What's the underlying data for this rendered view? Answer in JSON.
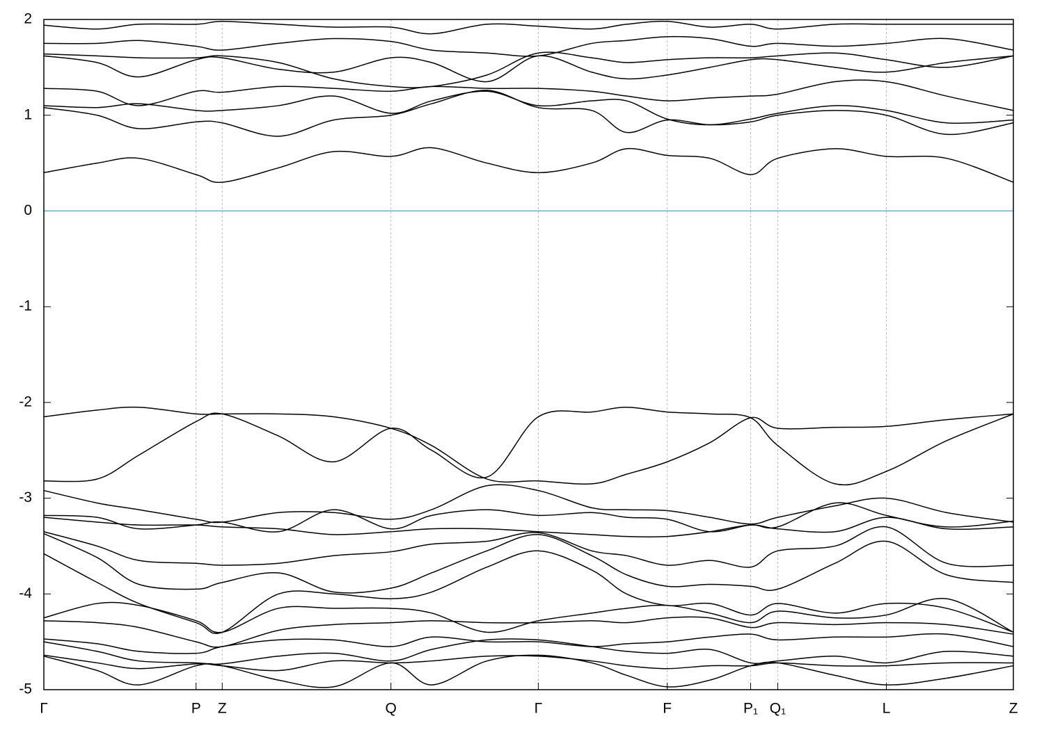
{
  "chart_data": {
    "type": "line",
    "color": "#000000",
    "reference_line": {
      "value": 0,
      "color": "#5fb0c8"
    },
    "grid_x": true,
    "grid_y": false,
    "xlim": [
      0,
      1
    ],
    "ylim": [
      -5,
      2
    ],
    "yticks": [
      -5,
      -4,
      -3,
      -2,
      -1,
      0,
      1,
      2
    ],
    "xticks": [
      {
        "value": 0,
        "label": "Γ"
      },
      {
        "value": 0.157,
        "label": "P"
      },
      {
        "value": 0.184,
        "label": "Z"
      },
      {
        "value": 0.358,
        "label": "Q"
      },
      {
        "value": 0.51,
        "label": "Γ"
      },
      {
        "value": 0.643,
        "label": "F"
      },
      {
        "value": 0.729,
        "label": "P₁"
      },
      {
        "value": 0.757,
        "label": "Q₁"
      },
      {
        "value": 0.869,
        "label": "L"
      },
      {
        "value": 1,
        "label": "Z"
      }
    ],
    "x": [
      0,
      0.055,
      0.098,
      0.157,
      0.184,
      0.242,
      0.299,
      0.358,
      0.4,
      0.457,
      0.51,
      0.565,
      0.601,
      0.643,
      0.687,
      0.729,
      0.757,
      0.816,
      0.869,
      0.931,
      1
    ],
    "series": [
      {
        "values": [
          0.4,
          0.5,
          0.55,
          0.38,
          0.3,
          0.45,
          0.62,
          0.57,
          0.66,
          0.5,
          0.4,
          0.5,
          0.65,
          0.58,
          0.55,
          0.38,
          0.55,
          0.65,
          0.57,
          0.55,
          0.3
        ]
      },
      {
        "values": [
          1.08,
          1.0,
          0.86,
          0.93,
          0.92,
          0.78,
          0.95,
          1.0,
          1.12,
          1.26,
          1.08,
          1.05,
          0.82,
          0.95,
          0.9,
          0.93,
          1.0,
          1.05,
          1.0,
          0.8,
          0.92
        ]
      },
      {
        "values": [
          1.1,
          1.08,
          1.12,
          1.05,
          1.05,
          1.1,
          1.2,
          1.02,
          1.15,
          1.25,
          1.1,
          1.15,
          1.15,
          0.96,
          0.9,
          0.96,
          1.02,
          1.1,
          1.05,
          0.92,
          0.95
        ]
      },
      {
        "values": [
          1.28,
          1.25,
          1.1,
          1.25,
          1.24,
          1.3,
          1.28,
          1.25,
          1.3,
          1.28,
          1.28,
          1.25,
          1.2,
          1.15,
          1.18,
          1.2,
          1.22,
          1.35,
          1.35,
          1.2,
          1.05
        ]
      },
      {
        "values": [
          1.62,
          1.55,
          1.4,
          1.58,
          1.6,
          1.48,
          1.45,
          1.6,
          1.55,
          1.35,
          1.62,
          1.45,
          1.38,
          1.42,
          1.5,
          1.58,
          1.58,
          1.5,
          1.45,
          1.55,
          1.62
        ]
      },
      {
        "values": [
          1.64,
          1.62,
          1.6,
          1.6,
          1.62,
          1.55,
          1.38,
          1.3,
          1.3,
          1.42,
          1.65,
          1.6,
          1.55,
          1.58,
          1.6,
          1.6,
          1.62,
          1.65,
          1.58,
          1.5,
          1.62
        ]
      },
      {
        "values": [
          1.75,
          1.75,
          1.78,
          1.72,
          1.68,
          1.75,
          1.8,
          1.77,
          1.68,
          1.65,
          1.62,
          1.75,
          1.78,
          1.82,
          1.8,
          1.72,
          1.75,
          1.72,
          1.75,
          1.8,
          1.68
        ]
      },
      {
        "values": [
          1.94,
          1.9,
          1.95,
          1.95,
          1.98,
          1.95,
          1.92,
          1.92,
          1.85,
          1.95,
          1.93,
          1.9,
          1.95,
          1.98,
          1.92,
          1.95,
          1.9,
          1.95,
          1.95,
          1.95,
          1.95
        ]
      },
      {
        "values": [
          -2.15,
          -2.08,
          -2.05,
          -2.12,
          -2.12,
          -2.12,
          -2.15,
          -2.27,
          -2.45,
          -2.8,
          -2.82,
          -2.85,
          -2.75,
          -2.62,
          -2.42,
          -2.16,
          -2.27,
          -2.26,
          -2.25,
          -2.18,
          -2.12
        ]
      },
      {
        "values": [
          -2.82,
          -2.8,
          -2.55,
          -2.2,
          -2.12,
          -2.35,
          -2.62,
          -2.27,
          -2.5,
          -2.78,
          -2.15,
          -2.1,
          -2.05,
          -2.1,
          -2.12,
          -2.16,
          -2.45,
          -2.85,
          -2.72,
          -2.4,
          -2.12
        ]
      },
      {
        "values": [
          -2.92,
          -3.05,
          -3.12,
          -3.22,
          -3.25,
          -3.15,
          -3.15,
          -3.22,
          -3.12,
          -2.87,
          -2.92,
          -3.1,
          -3.12,
          -3.13,
          -3.2,
          -3.27,
          -3.2,
          -3.08,
          -3.0,
          -3.15,
          -3.25
        ]
      },
      {
        "values": [
          -3.18,
          -3.2,
          -3.32,
          -3.28,
          -3.25,
          -3.35,
          -3.12,
          -3.32,
          -3.18,
          -3.12,
          -3.18,
          -3.15,
          -3.2,
          -3.22,
          -3.35,
          -3.28,
          -3.3,
          -3.05,
          -3.18,
          -3.3,
          -3.24
        ]
      },
      {
        "values": [
          -3.2,
          -3.25,
          -3.28,
          -3.28,
          -3.3,
          -3.32,
          -3.38,
          -3.35,
          -3.32,
          -3.32,
          -3.35,
          -3.38,
          -3.4,
          -3.4,
          -3.35,
          -3.28,
          -3.32,
          -3.35,
          -3.2,
          -3.32,
          -3.3
        ]
      },
      {
        "values": [
          -3.35,
          -3.5,
          -3.65,
          -3.68,
          -3.7,
          -3.68,
          -3.6,
          -3.56,
          -3.48,
          -3.45,
          -3.36,
          -3.55,
          -3.6,
          -3.7,
          -3.65,
          -3.72,
          -3.55,
          -3.5,
          -3.3,
          -3.68,
          -3.7
        ]
      },
      {
        "values": [
          -3.37,
          -3.62,
          -3.9,
          -3.95,
          -3.88,
          -3.78,
          -3.98,
          -3.94,
          -3.78,
          -3.55,
          -3.38,
          -3.6,
          -3.8,
          -3.92,
          -3.9,
          -3.92,
          -3.95,
          -3.68,
          -3.45,
          -3.8,
          -3.88
        ]
      },
      {
        "values": [
          -3.58,
          -3.88,
          -4.1,
          -4.3,
          -4.4,
          -4.0,
          -4.0,
          -4.05,
          -3.98,
          -3.72,
          -3.55,
          -3.75,
          -4.0,
          -4.12,
          -4.1,
          -4.22,
          -4.1,
          -4.2,
          -4.1,
          -4.15,
          -4.4
        ]
      },
      {
        "values": [
          -4.25,
          -4.1,
          -4.12,
          -4.28,
          -4.4,
          -4.15,
          -4.15,
          -4.15,
          -4.2,
          -4.4,
          -4.28,
          -4.2,
          -4.15,
          -4.12,
          -4.2,
          -4.3,
          -4.18,
          -4.25,
          -4.22,
          -4.05,
          -4.4
        ]
      },
      {
        "values": [
          -4.28,
          -4.3,
          -4.35,
          -4.5,
          -4.55,
          -4.38,
          -4.32,
          -4.3,
          -4.28,
          -4.3,
          -4.3,
          -4.28,
          -4.3,
          -4.25,
          -4.25,
          -4.35,
          -4.3,
          -4.32,
          -4.3,
          -4.32,
          -4.42
        ]
      },
      {
        "values": [
          -4.47,
          -4.52,
          -4.6,
          -4.62,
          -4.55,
          -4.48,
          -4.48,
          -4.55,
          -4.45,
          -4.5,
          -4.5,
          -4.55,
          -4.52,
          -4.5,
          -4.45,
          -4.42,
          -4.48,
          -4.45,
          -4.45,
          -4.42,
          -4.55
        ]
      },
      {
        "values": [
          -4.5,
          -4.6,
          -4.7,
          -4.72,
          -4.73,
          -4.65,
          -4.62,
          -4.7,
          -4.58,
          -4.48,
          -4.48,
          -4.55,
          -4.6,
          -4.62,
          -4.58,
          -4.72,
          -4.7,
          -4.65,
          -4.72,
          -4.6,
          -4.65
        ]
      },
      {
        "values": [
          -4.64,
          -4.72,
          -4.78,
          -4.73,
          -4.75,
          -4.8,
          -4.7,
          -4.72,
          -4.7,
          -4.65,
          -4.65,
          -4.7,
          -4.75,
          -4.78,
          -4.75,
          -4.75,
          -4.72,
          -4.75,
          -4.75,
          -4.72,
          -4.72
        ]
      },
      {
        "values": [
          -4.65,
          -4.8,
          -4.95,
          -4.75,
          -4.75,
          -4.9,
          -4.97,
          -4.72,
          -4.95,
          -4.7,
          -4.64,
          -4.72,
          -4.85,
          -4.97,
          -4.9,
          -4.75,
          -4.72,
          -4.85,
          -4.95,
          -4.88,
          -4.75
        ]
      }
    ]
  }
}
